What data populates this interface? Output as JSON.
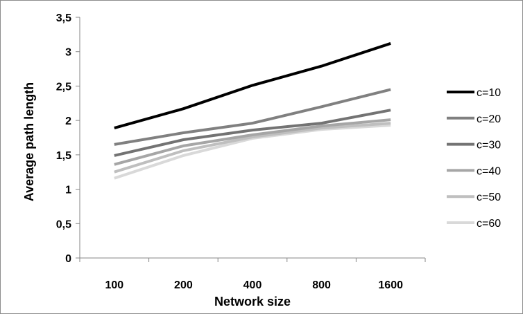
{
  "chart_data": {
    "type": "line",
    "title": "",
    "xlabel": "Network size",
    "ylabel": "Average path length",
    "categories": [
      "100",
      "200",
      "400",
      "800",
      "1600"
    ],
    "yticks": [
      "0",
      "0,5",
      "1",
      "1,5",
      "2",
      "2,5",
      "3",
      "3,5"
    ],
    "ylim": [
      0,
      3.5
    ],
    "grid": false,
    "legend_position": "right",
    "series": [
      {
        "name": "c=10",
        "color": "#000000",
        "values": [
          1.89,
          2.17,
          2.51,
          2.79,
          3.12
        ]
      },
      {
        "name": "c=20",
        "color": "#808080",
        "values": [
          1.65,
          1.82,
          1.96,
          2.2,
          2.45
        ]
      },
      {
        "name": "c=30",
        "color": "#737373",
        "values": [
          1.49,
          1.72,
          1.86,
          1.96,
          2.15
        ]
      },
      {
        "name": "c=40",
        "color": "#a6a6a6",
        "values": [
          1.36,
          1.63,
          1.79,
          1.92,
          2.01
        ]
      },
      {
        "name": "c=50",
        "color": "#bfbfbf",
        "values": [
          1.25,
          1.56,
          1.76,
          1.89,
          1.96
        ]
      },
      {
        "name": "c=60",
        "color": "#d9d9d9",
        "values": [
          1.16,
          1.49,
          1.74,
          1.87,
          1.93
        ]
      }
    ]
  }
}
